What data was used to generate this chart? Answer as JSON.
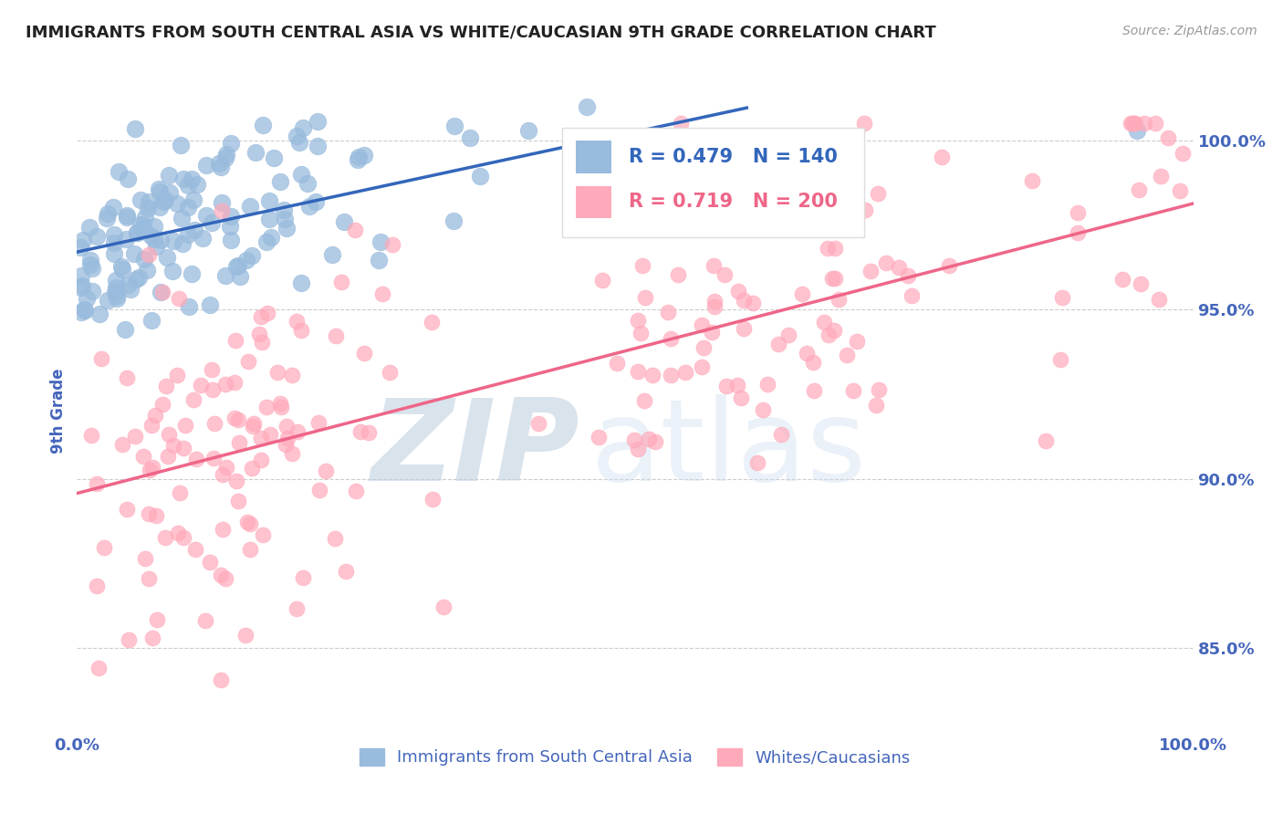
{
  "title": "IMMIGRANTS FROM SOUTH CENTRAL ASIA VS WHITE/CAUCASIAN 9TH GRADE CORRELATION CHART",
  "source": "Source: ZipAtlas.com",
  "ylabel": "9th Grade",
  "y_ticks": [
    85.0,
    90.0,
    95.0,
    100.0
  ],
  "y_tick_labels": [
    "85.0%",
    "90.0%",
    "95.0%",
    "100.0%"
  ],
  "legend_blue_r": "0.479",
  "legend_blue_n": "140",
  "legend_pink_r": "0.719",
  "legend_pink_n": "200",
  "legend_blue_label": "Immigrants from South Central Asia",
  "legend_pink_label": "Whites/Caucasians",
  "blue_color": "#99BBDD",
  "pink_color": "#FFAABB",
  "blue_line_color": "#3366BB",
  "pink_line_color": "#EE6688",
  "watermark_zip": "ZIP",
  "watermark_atlas": "atlas",
  "watermark_color_zip": "#CCDDEE",
  "watermark_color_atlas": "#BBCCDD",
  "background_color": "#FFFFFF",
  "title_color": "#222222",
  "axis_label_color": "#4466BB",
  "tick_color": "#4466BB",
  "grid_color": "#CCCCCC",
  "blue_R": 0.479,
  "blue_N": 140,
  "pink_R": 0.719,
  "pink_N": 200,
  "xlim": [
    0,
    1.0
  ],
  "ylim": [
    82.5,
    101.5
  ]
}
